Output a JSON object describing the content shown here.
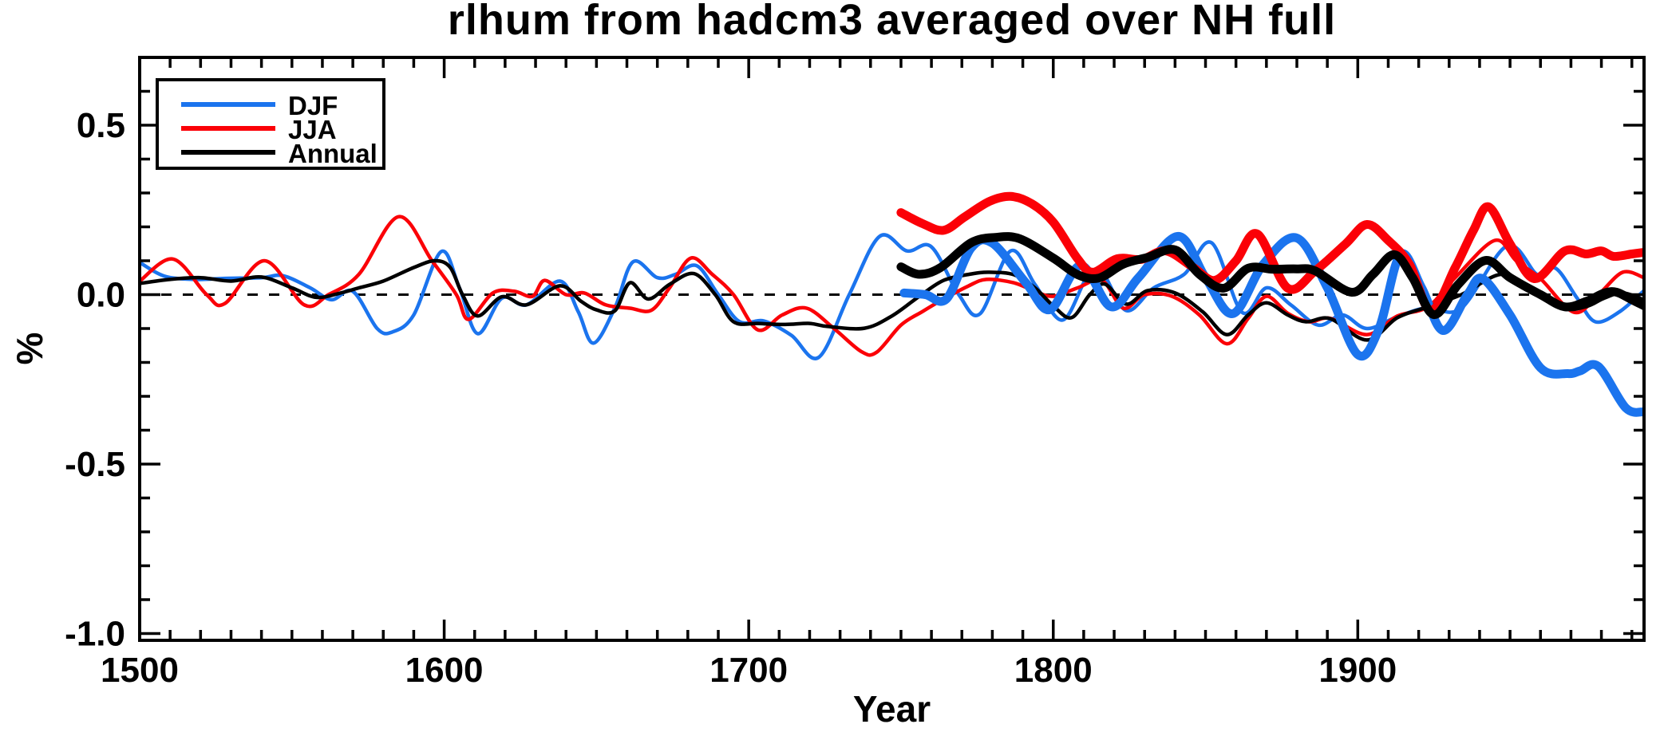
{
  "chart_data": {
    "type": "line",
    "title": "rlhum from hadcm3 averaged over NH full",
    "xlabel": "Year",
    "ylabel": "%",
    "x_range": [
      1500,
      1994
    ],
    "y_range": [
      -1.02,
      0.7
    ],
    "grid": false,
    "zero_line_dashed": true,
    "x_ticks": [
      {
        "v": 1500,
        "label": "1500"
      },
      {
        "v": 1600,
        "label": "1600"
      },
      {
        "v": 1700,
        "label": "1700"
      },
      {
        "v": 1800,
        "label": "1800"
      },
      {
        "v": 1900,
        "label": "1900"
      }
    ],
    "x_minor_step": 10,
    "y_ticks": [
      {
        "v": 0.5,
        "label": "0.5"
      },
      {
        "v": 0.0,
        "label": "0.0"
      },
      {
        "v": -0.5,
        "label": "-0.5"
      },
      {
        "v": -1.0,
        "label": "-1.0"
      }
    ],
    "y_minor_step": 0.1,
    "legend": {
      "position": "top-left",
      "entries": [
        {
          "label": "DJF",
          "color": "#1b74ee"
        },
        {
          "label": "JJA",
          "color": "#fb0007"
        },
        {
          "label": "Annual",
          "color": "#000000"
        }
      ]
    },
    "series": [
      {
        "id": "djf-thin",
        "label": "DJF (thin line, 1500-1994)",
        "color": "#1b74ee",
        "thickness": "thin",
        "points": [
          [
            1500,
            0.095
          ],
          [
            1508,
            0.055
          ],
          [
            1518,
            0.045
          ],
          [
            1528,
            0.048
          ],
          [
            1540,
            0.05
          ],
          [
            1547,
            0.056
          ],
          [
            1556,
            0.02
          ],
          [
            1563,
            -0.015
          ],
          [
            1570,
            0.01
          ],
          [
            1578,
            -0.1
          ],
          [
            1583,
            -0.11
          ],
          [
            1590,
            -0.06
          ],
          [
            1599,
            0.127
          ],
          [
            1605,
            0.02
          ],
          [
            1611,
            -0.115
          ],
          [
            1619,
            -0.01
          ],
          [
            1627,
            -0.03
          ],
          [
            1638,
            0.04
          ],
          [
            1644,
            -0.05
          ],
          [
            1649,
            -0.143
          ],
          [
            1656,
            -0.04
          ],
          [
            1662,
            0.097
          ],
          [
            1670,
            0.05
          ],
          [
            1676,
            0.06
          ],
          [
            1683,
            0.085
          ],
          [
            1690,
            0.0
          ],
          [
            1697,
            -0.08
          ],
          [
            1705,
            -0.078
          ],
          [
            1714,
            -0.12
          ],
          [
            1723,
            -0.185
          ],
          [
            1733,
            0.0
          ],
          [
            1743,
            0.172
          ],
          [
            1752,
            0.129
          ],
          [
            1760,
            0.141
          ],
          [
            1769,
            0.0
          ],
          [
            1776,
            -0.056
          ],
          [
            1786,
            0.129
          ],
          [
            1794,
            0.03
          ],
          [
            1803,
            -0.075
          ],
          [
            1811,
            0.05
          ],
          [
            1816,
            0.066
          ],
          [
            1824,
            -0.047
          ],
          [
            1833,
            0.02
          ],
          [
            1843,
            0.06
          ],
          [
            1852,
            0.153
          ],
          [
            1862,
            -0.052
          ],
          [
            1870,
            0.02
          ],
          [
            1878,
            -0.03
          ],
          [
            1887,
            -0.09
          ],
          [
            1895,
            -0.06
          ],
          [
            1903,
            -0.1
          ],
          [
            1913,
            -0.065
          ],
          [
            1923,
            -0.038
          ],
          [
            1934,
            -0.04
          ],
          [
            1949,
            0.144
          ],
          [
            1959,
            0.059
          ],
          [
            1965,
            0.078
          ],
          [
            1972,
            -0.01
          ],
          [
            1978,
            -0.08
          ],
          [
            1986,
            -0.05
          ],
          [
            1994,
            0.012
          ]
        ]
      },
      {
        "id": "jja-thin",
        "label": "JJA (thin line, 1500-1994)",
        "color": "#fb0007",
        "thickness": "thin",
        "points": [
          [
            1500,
            0.04
          ],
          [
            1511,
            0.105
          ],
          [
            1522,
            0.0
          ],
          [
            1528,
            -0.026
          ],
          [
            1541,
            0.1
          ],
          [
            1554,
            -0.03
          ],
          [
            1562,
            0.0
          ],
          [
            1572,
            0.06
          ],
          [
            1585,
            0.23
          ],
          [
            1596,
            0.1
          ],
          [
            1604,
            0.0
          ],
          [
            1608,
            -0.073
          ],
          [
            1616,
            0.005
          ],
          [
            1623,
            0.01
          ],
          [
            1629,
            -0.005
          ],
          [
            1633,
            0.042
          ],
          [
            1640,
            0.0
          ],
          [
            1646,
            0.005
          ],
          [
            1653,
            -0.03
          ],
          [
            1661,
            -0.04
          ],
          [
            1668,
            -0.046
          ],
          [
            1674,
            0.02
          ],
          [
            1681,
            0.108
          ],
          [
            1688,
            0.06
          ],
          [
            1695,
            0.0
          ],
          [
            1703,
            -0.104
          ],
          [
            1711,
            -0.06
          ],
          [
            1719,
            -0.04
          ],
          [
            1728,
            -0.1
          ],
          [
            1737,
            -0.168
          ],
          [
            1742,
            -0.17
          ],
          [
            1750,
            -0.09
          ],
          [
            1757,
            -0.05
          ],
          [
            1764,
            -0.013
          ],
          [
            1772,
            0.025
          ],
          [
            1778,
            0.045
          ],
          [
            1787,
            0.035
          ],
          [
            1794,
            0.01
          ],
          [
            1800,
            -0.005
          ],
          [
            1808,
            0.02
          ],
          [
            1816,
            0.042
          ],
          [
            1823,
            -0.04
          ],
          [
            1830,
            0.0
          ],
          [
            1839,
            -0.005
          ],
          [
            1848,
            -0.06
          ],
          [
            1857,
            -0.145
          ],
          [
            1864,
            -0.07
          ],
          [
            1870,
            -0.005
          ],
          [
            1877,
            -0.055
          ],
          [
            1884,
            -0.08
          ],
          [
            1891,
            -0.07
          ],
          [
            1903,
            -0.118
          ],
          [
            1913,
            -0.063
          ],
          [
            1923,
            -0.036
          ],
          [
            1932,
            0.05
          ],
          [
            1945,
            0.16
          ],
          [
            1952,
            0.1
          ],
          [
            1960,
            0.047
          ],
          [
            1971,
            -0.052
          ],
          [
            1979,
            0.0
          ],
          [
            1987,
            0.066
          ],
          [
            1994,
            0.05
          ]
        ]
      },
      {
        "id": "annual-thin",
        "label": "Annual (thin line, 1500-1994)",
        "color": "#000000",
        "thickness": "thin",
        "points": [
          [
            1500,
            0.033
          ],
          [
            1510,
            0.045
          ],
          [
            1520,
            0.05
          ],
          [
            1530,
            0.04
          ],
          [
            1540,
            0.052
          ],
          [
            1550,
            0.02
          ],
          [
            1558,
            -0.008
          ],
          [
            1566,
            0.005
          ],
          [
            1572,
            0.02
          ],
          [
            1580,
            0.04
          ],
          [
            1590,
            0.08
          ],
          [
            1597,
            0.1
          ],
          [
            1602,
            0.08
          ],
          [
            1606,
            0.0
          ],
          [
            1611,
            -0.063
          ],
          [
            1619,
            -0.006
          ],
          [
            1627,
            -0.03
          ],
          [
            1638,
            0.026
          ],
          [
            1645,
            -0.02
          ],
          [
            1650,
            -0.045
          ],
          [
            1656,
            -0.048
          ],
          [
            1661,
            0.035
          ],
          [
            1667,
            -0.013
          ],
          [
            1674,
            0.03
          ],
          [
            1682,
            0.062
          ],
          [
            1689,
            0.0
          ],
          [
            1695,
            -0.08
          ],
          [
            1703,
            -0.085
          ],
          [
            1712,
            -0.088
          ],
          [
            1720,
            -0.085
          ],
          [
            1726,
            -0.094
          ],
          [
            1738,
            -0.099
          ],
          [
            1747,
            -0.063
          ],
          [
            1756,
            -0.005
          ],
          [
            1764,
            0.042
          ],
          [
            1773,
            0.061
          ],
          [
            1779,
            0.066
          ],
          [
            1787,
            0.059
          ],
          [
            1794,
            0.02
          ],
          [
            1800,
            -0.033
          ],
          [
            1806,
            -0.068
          ],
          [
            1812,
            0.0
          ],
          [
            1817,
            0.031
          ],
          [
            1824,
            -0.028
          ],
          [
            1831,
            0.012
          ],
          [
            1840,
            0.005
          ],
          [
            1849,
            -0.05
          ],
          [
            1857,
            -0.118
          ],
          [
            1864,
            -0.06
          ],
          [
            1870,
            -0.024
          ],
          [
            1877,
            -0.06
          ],
          [
            1883,
            -0.08
          ],
          [
            1891,
            -0.071
          ],
          [
            1903,
            -0.134
          ],
          [
            1913,
            -0.068
          ],
          [
            1923,
            -0.036
          ],
          [
            1934,
            0.0
          ],
          [
            1947,
            0.06
          ],
          [
            1956,
            0.02
          ],
          [
            1967,
            -0.04
          ],
          [
            1975,
            -0.035
          ],
          [
            1981,
            -0.01
          ],
          [
            1987,
            0.005
          ],
          [
            1994,
            -0.015
          ]
        ]
      },
      {
        "id": "djf-thick",
        "label": "DJF (thick line, 1750-1994)",
        "color": "#1b74ee",
        "thickness": "thick",
        "points": [
          [
            1751,
            0.005
          ],
          [
            1758,
            0.0
          ],
          [
            1765,
            -0.012
          ],
          [
            1773,
            0.137
          ],
          [
            1780,
            0.152
          ],
          [
            1791,
            0.035
          ],
          [
            1799,
            -0.044
          ],
          [
            1809,
            0.086
          ],
          [
            1819,
            -0.036
          ],
          [
            1828,
            0.05
          ],
          [
            1841,
            0.172
          ],
          [
            1850,
            0.05
          ],
          [
            1859,
            -0.056
          ],
          [
            1869,
            0.09
          ],
          [
            1880,
            0.167
          ],
          [
            1890,
            0.02
          ],
          [
            1900,
            -0.177
          ],
          [
            1907,
            -0.1
          ],
          [
            1914,
            0.118
          ],
          [
            1921,
            0.02
          ],
          [
            1928,
            -0.106
          ],
          [
            1936,
            0.0
          ],
          [
            1941,
            0.047
          ],
          [
            1950,
            -0.06
          ],
          [
            1960,
            -0.216
          ],
          [
            1969,
            -0.233
          ],
          [
            1973,
            -0.225
          ],
          [
            1979,
            -0.212
          ],
          [
            1988,
            -0.334
          ],
          [
            1994,
            -0.346
          ]
        ]
      },
      {
        "id": "jja-thick",
        "label": "JJA (thick line, 1750-1994)",
        "color": "#fb0007",
        "thickness": "thick",
        "points": [
          [
            1750,
            0.242
          ],
          [
            1757,
            0.21
          ],
          [
            1764,
            0.19
          ],
          [
            1771,
            0.23
          ],
          [
            1779,
            0.275
          ],
          [
            1786,
            0.29
          ],
          [
            1793,
            0.268
          ],
          [
            1800,
            0.214
          ],
          [
            1808,
            0.106
          ],
          [
            1813,
            0.066
          ],
          [
            1821,
            0.106
          ],
          [
            1829,
            0.104
          ],
          [
            1837,
            0.129
          ],
          [
            1846,
            0.08
          ],
          [
            1853,
            0.042
          ],
          [
            1860,
            0.1
          ],
          [
            1867,
            0.179
          ],
          [
            1877,
            0.019
          ],
          [
            1886,
            0.07
          ],
          [
            1896,
            0.15
          ],
          [
            1903,
            0.207
          ],
          [
            1910,
            0.16
          ],
          [
            1917,
            0.089
          ],
          [
            1924,
            -0.047
          ],
          [
            1932,
            0.08
          ],
          [
            1938,
            0.19
          ],
          [
            1943,
            0.259
          ],
          [
            1950,
            0.15
          ],
          [
            1958,
            0.047
          ],
          [
            1968,
            0.129
          ],
          [
            1975,
            0.12
          ],
          [
            1980,
            0.129
          ],
          [
            1984,
            0.113
          ],
          [
            1990,
            0.12
          ],
          [
            1994,
            0.125
          ]
        ]
      },
      {
        "id": "annual-thick",
        "label": "Annual (thick line, 1750-1994)",
        "color": "#000000",
        "thickness": "thick",
        "points": [
          [
            1750,
            0.082
          ],
          [
            1756,
            0.06
          ],
          [
            1763,
            0.08
          ],
          [
            1773,
            0.153
          ],
          [
            1781,
            0.169
          ],
          [
            1789,
            0.165
          ],
          [
            1800,
            0.108
          ],
          [
            1808,
            0.059
          ],
          [
            1815,
            0.049
          ],
          [
            1823,
            0.09
          ],
          [
            1831,
            0.11
          ],
          [
            1840,
            0.132
          ],
          [
            1848,
            0.06
          ],
          [
            1856,
            0.019
          ],
          [
            1864,
            0.078
          ],
          [
            1872,
            0.075
          ],
          [
            1880,
            0.076
          ],
          [
            1886,
            0.07
          ],
          [
            1898,
            0.007
          ],
          [
            1905,
            0.06
          ],
          [
            1912,
            0.118
          ],
          [
            1918,
            0.05
          ],
          [
            1925,
            -0.059
          ],
          [
            1933,
            0.03
          ],
          [
            1942,
            0.101
          ],
          [
            1950,
            0.05
          ],
          [
            1960,
            0.0
          ],
          [
            1968,
            -0.036
          ],
          [
            1975,
            -0.02
          ],
          [
            1981,
            0.005
          ],
          [
            1985,
            0.007
          ],
          [
            1990,
            -0.015
          ],
          [
            1994,
            -0.033
          ]
        ]
      }
    ]
  }
}
